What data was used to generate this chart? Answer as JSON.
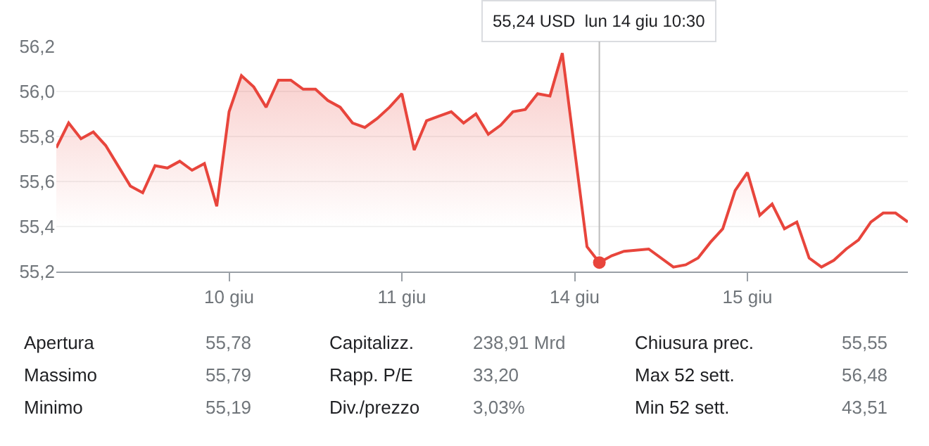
{
  "chart_data": [
    {
      "type": "area",
      "categories": [
        null,
        null,
        null,
        null,
        null,
        null,
        null,
        null,
        null,
        null,
        null,
        null,
        null,
        null,
        "10 giu",
        null,
        null,
        null,
        null,
        null,
        null,
        null,
        null,
        null,
        null,
        null,
        null,
        null,
        "11 giu",
        null,
        null,
        null,
        null,
        null,
        null,
        null,
        null,
        null,
        null,
        null,
        null,
        null,
        "14 giu",
        null,
        null,
        null,
        null,
        null,
        null,
        null,
        null,
        null,
        null,
        null,
        null,
        null,
        "15 giu",
        null,
        null,
        null,
        null,
        null,
        null,
        null,
        null,
        null,
        null,
        null,
        null,
        null
      ],
      "series": [
        {
          "color": "#e8453c",
          "values": [
            55.75,
            55.86,
            55.79,
            55.82,
            55.76,
            55.67,
            55.58,
            55.55,
            55.67,
            55.66,
            55.69,
            55.65,
            55.68,
            55.49,
            55.91,
            56.07,
            56.02,
            55.93,
            56.05,
            56.05,
            56.01,
            56.01,
            55.96,
            55.93,
            55.86,
            55.84,
            55.88,
            55.93,
            55.99,
            55.74,
            55.87,
            55.89,
            55.91,
            55.86,
            55.9,
            55.81,
            55.85,
            55.91,
            55.92,
            55.99,
            55.98,
            56.17,
            null,
            55.31,
            55.24,
            55.27,
            55.29,
            null,
            55.3,
            null,
            55.22,
            55.23,
            55.26,
            55.33,
            55.39,
            55.56,
            55.64,
            55.45,
            55.5,
            55.39,
            55.42,
            55.26,
            55.22,
            55.25,
            55.3,
            55.34,
            55.42,
            55.46,
            55.46,
            55.42
          ]
        }
      ],
      "ylim": [
        55.2,
        56.2
      ],
      "yticks": [
        {
          "value": 55.2,
          "label": "55,2"
        },
        {
          "value": 55.4,
          "label": "55,4"
        },
        {
          "value": 55.6,
          "label": "55,6"
        },
        {
          "value": 55.8,
          "label": "55,8"
        },
        {
          "value": 56.0,
          "label": "56,0"
        },
        {
          "value": 56.2,
          "label": "56,2"
        }
      ],
      "grid": "y",
      "marker": "none",
      "line_style": "solid",
      "annotations": [
        {
          "text": "55,24 USD  lun 14 giu 10:30",
          "y": 55.24
        }
      ]
    },
    {
      "type": "other",
      "annotations": [
        "Apertura",
        "55,78",
        "Capitalizz.",
        "238,91 Mrd",
        "Chiusura prec.",
        "55,55",
        "Massimo",
        "55,79",
        "Rapp. P/E",
        "33,20",
        "Max 52 sett.",
        "56,48",
        "Minimo",
        "55,19",
        "Div./prezzo",
        "3,03%",
        "Min 52 sett.",
        "43,51"
      ]
    }
  ]
}
